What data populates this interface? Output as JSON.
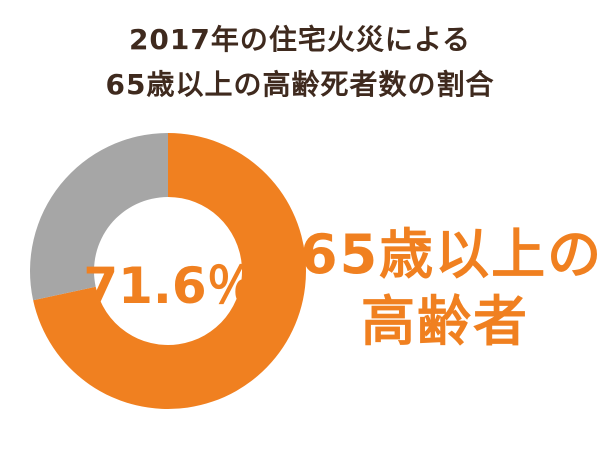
{
  "chart_data": {
    "type": "pie",
    "variant": "donut",
    "title_lines": [
      "2017年の住宅火災による",
      "65歳以上の高齢死者数の割合"
    ],
    "center_label": "71.6％",
    "highlight_label_lines": [
      "65歳以上の",
      "高齢者"
    ],
    "slices": [
      {
        "value": 71.6,
        "color": "#f08020"
      },
      {
        "value": 28.4,
        "color": "#a6a6a6"
      }
    ],
    "start": "12 o'clock",
    "direction": "clockwise"
  }
}
